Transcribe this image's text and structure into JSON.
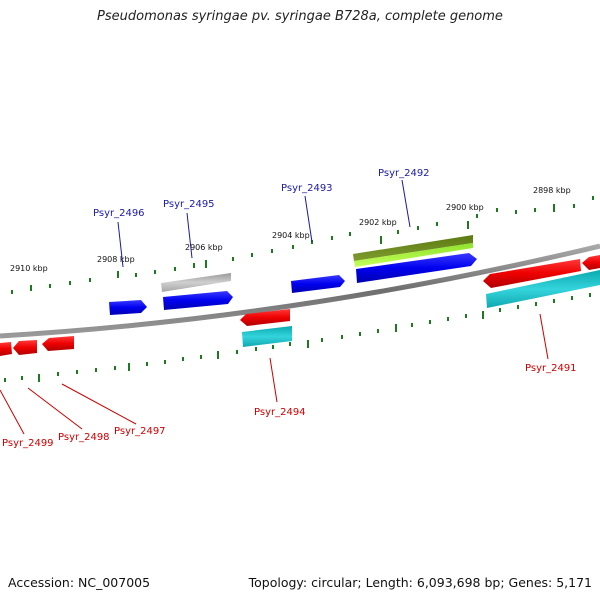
{
  "title": "Pseudomonas syringae pv. syringae B728a, complete genome",
  "footer": {
    "accession": "Accession: NC_007005",
    "stats": "Topology: circular; Length: 6,093,698 bp; Genes: 5,171"
  },
  "colors": {
    "backbone": "#8a8a8a",
    "tick": "#1e7a1e",
    "forward_gene": "#0000e6",
    "reverse_gene": "#ee0000",
    "label_blue": "#1a1aa6",
    "label_red": "#cc0000",
    "cyan_track": "#22c4cc",
    "grey_track": "#aaaaaa",
    "olive_track": "#6b8a1e",
    "lime_track": "#a6f03a"
  },
  "scale_labels": [
    "2910 kbp",
    "2908 kbp",
    "2906 kbp",
    "2904 kbp",
    "2902 kbp",
    "2900 kbp",
    "2898 kbp"
  ],
  "gene_labels": {
    "psyr_2491": "Psyr_2491",
    "psyr_2492": "Psyr_2492",
    "psyr_2493": "Psyr_2493",
    "psyr_2494": "Psyr_2494",
    "psyr_2495": "Psyr_2495",
    "psyr_2496": "Psyr_2496",
    "psyr_2497": "Psyr_2497",
    "psyr_2498": "Psyr_2498",
    "psyr_2499": "Psyr_2499"
  }
}
